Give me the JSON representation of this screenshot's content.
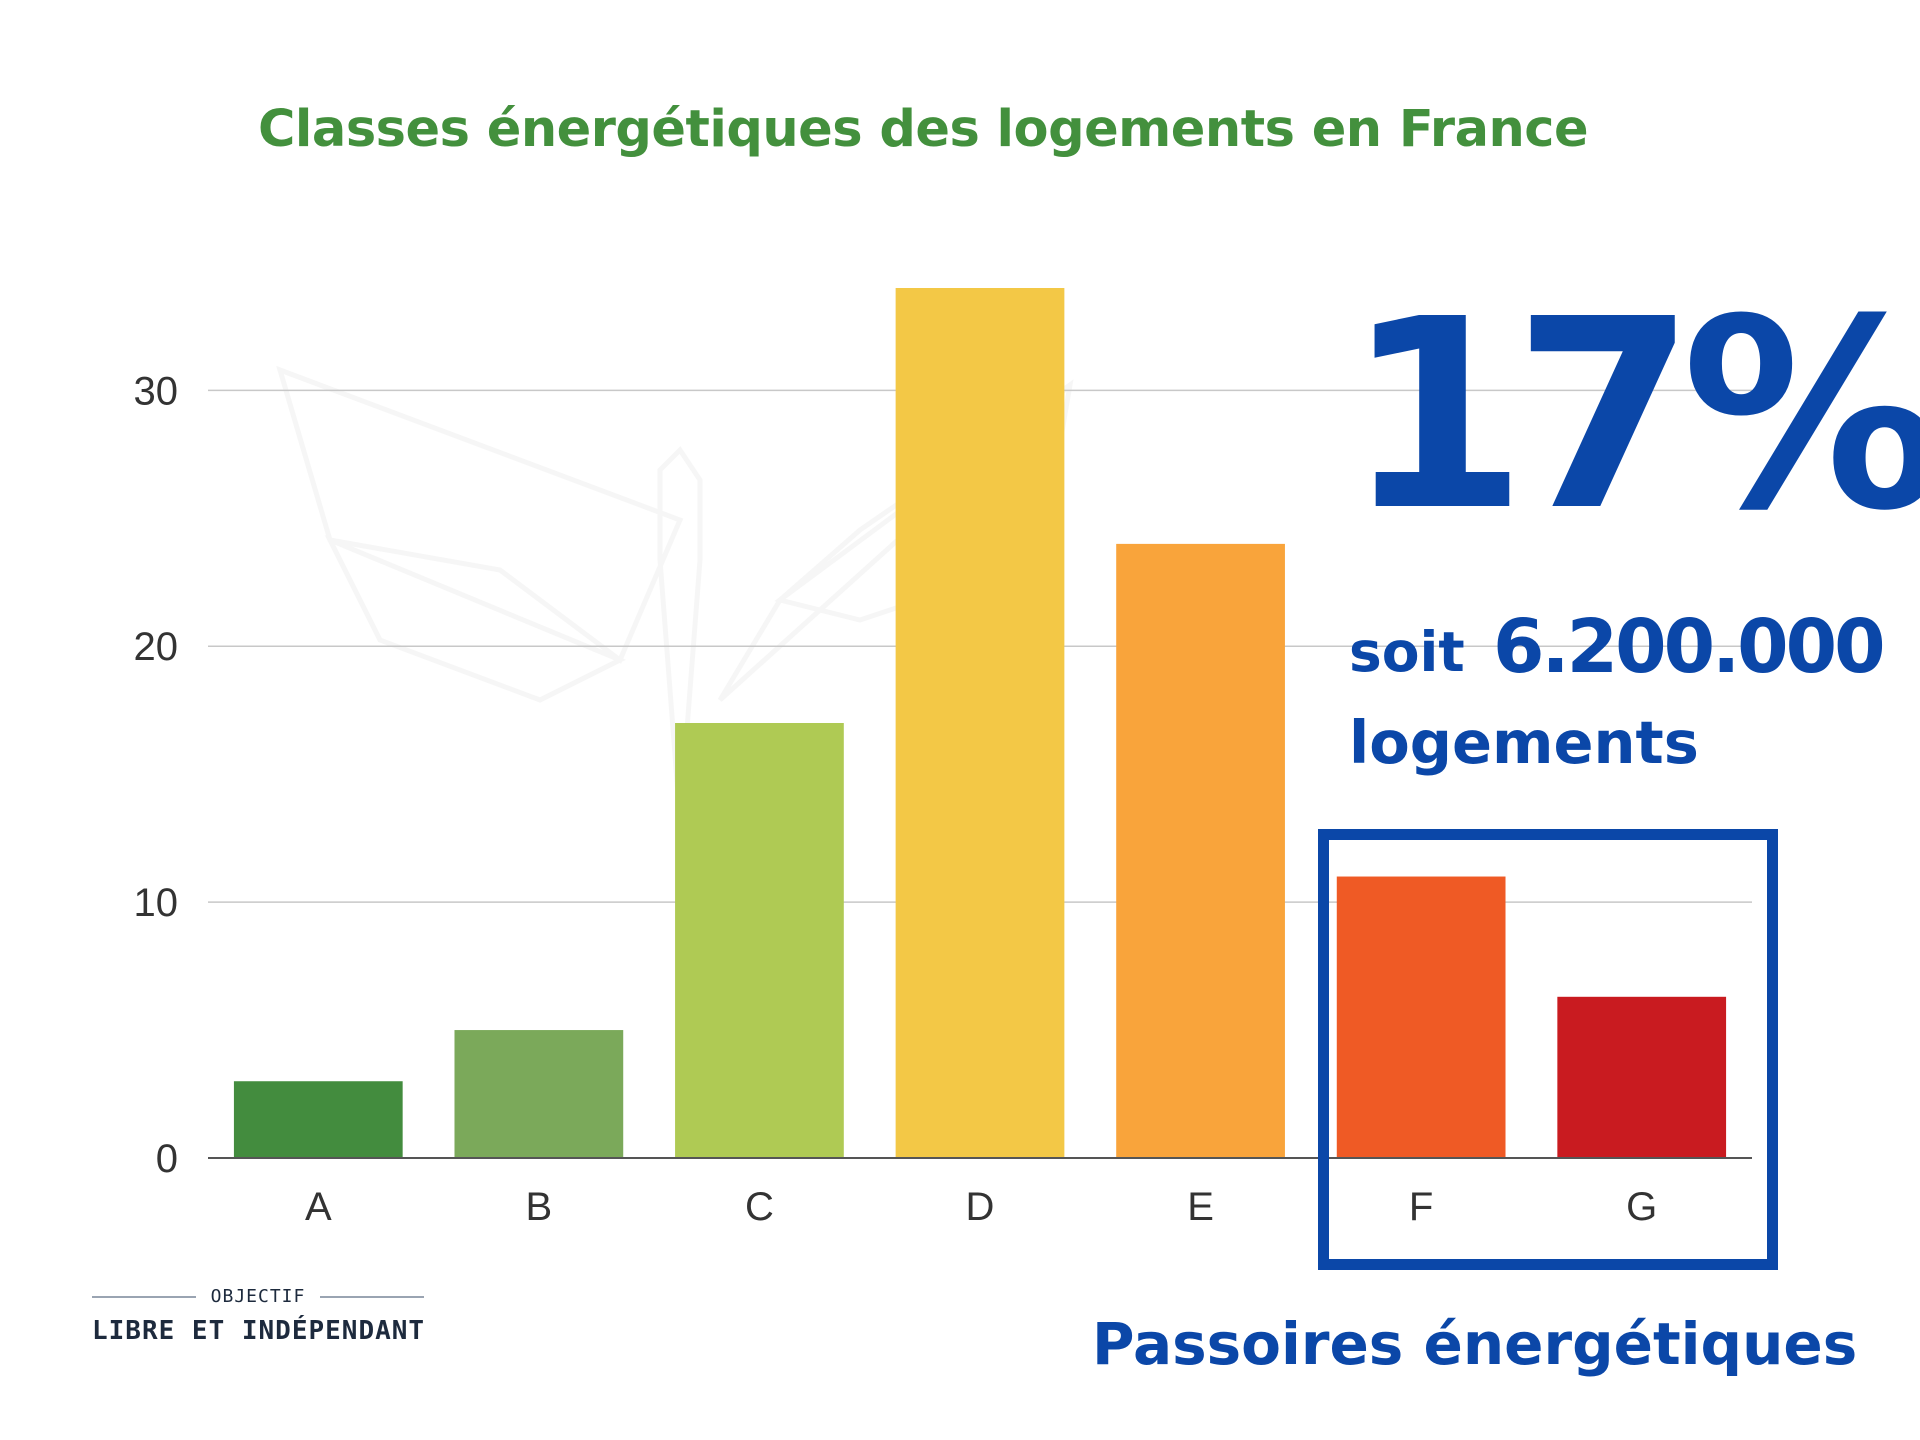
{
  "chart_data": {
    "type": "bar",
    "title": "Classes énergétiques des logements en France",
    "xlabel": "",
    "ylabel": "",
    "categories": [
      "A",
      "B",
      "C",
      "D",
      "E",
      "F",
      "G"
    ],
    "values": [
      3,
      5,
      17,
      34,
      24,
      11,
      6.3
    ],
    "colors": [
      "#438c3e",
      "#7ba95a",
      "#afca54",
      "#f3c846",
      "#f9a43b",
      "#ef5a25",
      "#c91b20"
    ],
    "ylim": [
      0,
      34
    ],
    "yticks": [
      0,
      10,
      20,
      30
    ],
    "grid": true,
    "legend": "none"
  },
  "callout": {
    "percent": "17%",
    "soit": "soit",
    "count": "6.200.000",
    "units": "logements",
    "highlight_categories": [
      "F",
      "G"
    ],
    "label": "Passoires énergétiques"
  },
  "logo": {
    "top": "OBJECTIF",
    "bottom": "LIBRE ET INDÉPENDANT"
  },
  "colors": {
    "title": "#43903d",
    "accent": "#0b47a8",
    "grid": "#c8c8c8",
    "text": "#333333"
  }
}
